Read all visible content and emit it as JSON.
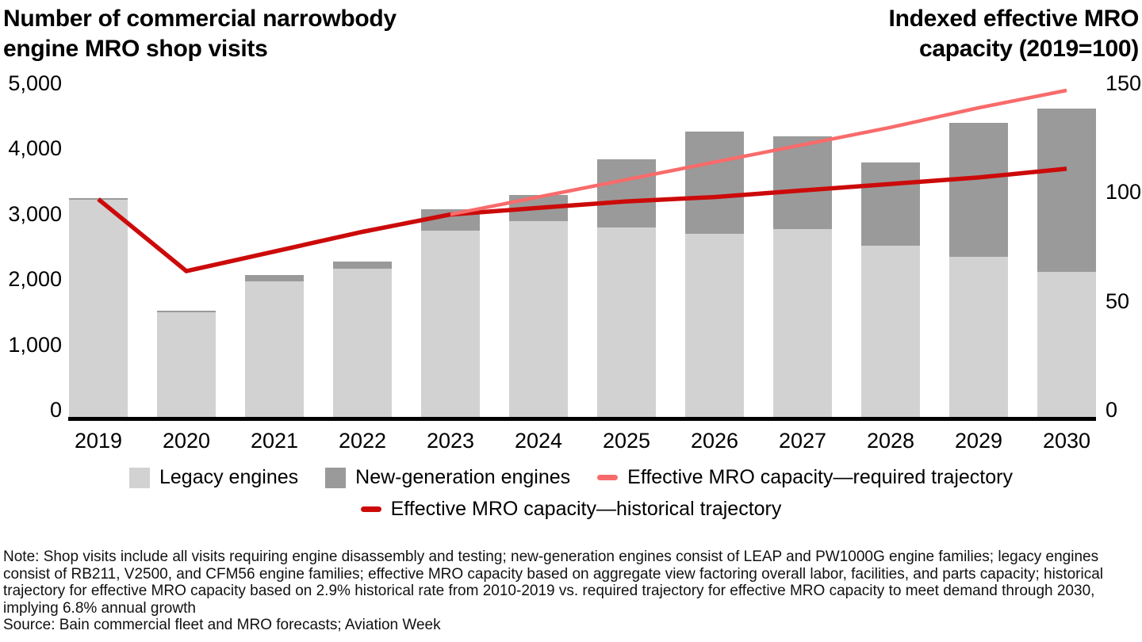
{
  "header": {
    "left_axis_title": "Number of commercial narrowbody engine MRO shop visits",
    "right_axis_title": "Indexed effective MRO capacity (2019=100)"
  },
  "chart_data": {
    "type": "bar",
    "subtype": "stacked-bars-with-lines",
    "categories": [
      "2019",
      "2020",
      "2021",
      "2022",
      "2023",
      "2024",
      "2025",
      "2026",
      "2027",
      "2028",
      "2029",
      "2030"
    ],
    "bar_series": [
      {
        "name": "Legacy engines",
        "color_key": "legacy",
        "values": [
          3325,
          1600,
          2075,
          2275,
          2850,
          3000,
          2900,
          2800,
          2875,
          2625,
          2450,
          2225
        ]
      },
      {
        "name": "New-generation engines",
        "color_key": "newgen",
        "values": [
          25,
          25,
          100,
          100,
          325,
          400,
          1050,
          1575,
          1425,
          1275,
          2050,
          2500
        ]
      }
    ],
    "line_series": [
      {
        "name": "Effective MRO capacity—required trajectory",
        "color_key": "required",
        "axis": "right",
        "start_index": 4,
        "values": [
          93,
          101,
          109,
          117,
          125,
          133,
          142,
          150
        ]
      },
      {
        "name": "Effective MRO capacity—historical trajectory",
        "color_key": "historical",
        "axis": "right",
        "start_index": 0,
        "values": [
          100,
          67,
          76,
          85,
          93,
          96,
          99,
          101,
          104,
          107,
          110,
          114
        ]
      }
    ],
    "left_axis": {
      "max": 5000,
      "ticks": [
        {
          "label": "5,000",
          "value": 5000
        },
        {
          "label": "4,000",
          "value": 4000
        },
        {
          "label": "3,000",
          "value": 3000
        },
        {
          "label": "2,000",
          "value": 2000
        },
        {
          "label": "1,000",
          "value": 1000
        },
        {
          "label": "0",
          "value": 0
        }
      ]
    },
    "right_axis": {
      "max": 150,
      "ticks": [
        {
          "label": "150",
          "value": 150
        },
        {
          "label": "100",
          "value": 100
        },
        {
          "label": "50",
          "value": 50
        },
        {
          "label": "0",
          "value": 0
        }
      ]
    },
    "grid": "off",
    "legend_position": "bottom"
  },
  "legend": {
    "legacy": "Legacy engines",
    "newgen": "New-generation engines",
    "required": "Effective MRO capacity—required trajectory",
    "historical": "Effective MRO capacity—historical trajectory"
  },
  "footer": {
    "note": "Note: Shop visits include all visits requiring engine disassembly and testing; new-generation engines consist of LEAP and PW1000G engine families; legacy engines consist of RB211, V2500, and CFM56 engine families; effective MRO capacity based on aggregate view factoring overall labor, facilities, and parts capacity; historical trajectory for effective MRO capacity based on 2.9% historical rate from 2010-2019 vs. required trajectory for effective MRO capacity to meet demand through 2030, implying 6.8% annual growth",
    "source": "Source: Bain commercial fleet and MRO forecasts; Aviation Week"
  },
  "colors": {
    "legacy": "#d2d2d2",
    "newgen": "#9a9a9a",
    "required": "#f96b6b",
    "historical": "#cc0a0a",
    "axis": "#000000"
  }
}
